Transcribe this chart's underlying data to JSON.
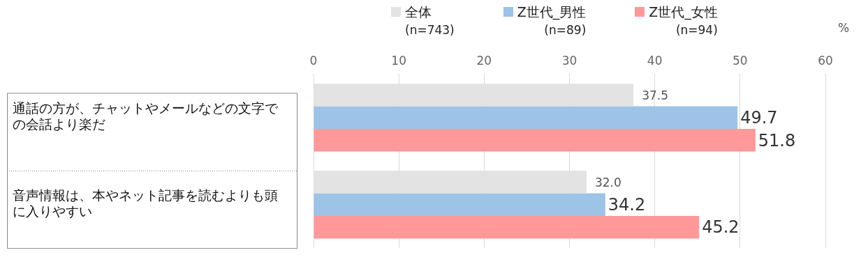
{
  "chart_data": {
    "type": "bar",
    "orientation": "horizontal",
    "categories": [
      "通話の方が、チャットやメールなどの文字での会話より楽だ",
      "音声情報は、本やネット記事を読むよりも頭に入りやすい"
    ],
    "series": [
      {
        "name": "全体\n(n=743)",
        "color": "#e3e3e3",
        "values": [
          37.5,
          32.0
        ],
        "value_labels": [
          "37.5",
          "32.0"
        ]
      },
      {
        "name": "Z世代_男性\n(n=89)",
        "color": "#9dc3e6",
        "values": [
          49.7,
          34.2
        ],
        "value_labels": [
          "49.7",
          "34.2"
        ]
      },
      {
        "name": "Z世代_女性\n(n=94)",
        "color": "#ff9999",
        "values": [
          51.8,
          45.2
        ],
        "value_labels": [
          "51.8",
          "45.2"
        ]
      }
    ],
    "xlabel": "%",
    "xlim": [
      0,
      60
    ],
    "xticks": [
      0,
      10,
      20,
      30,
      40,
      50,
      60
    ],
    "grid": "x",
    "legend": "top"
  }
}
